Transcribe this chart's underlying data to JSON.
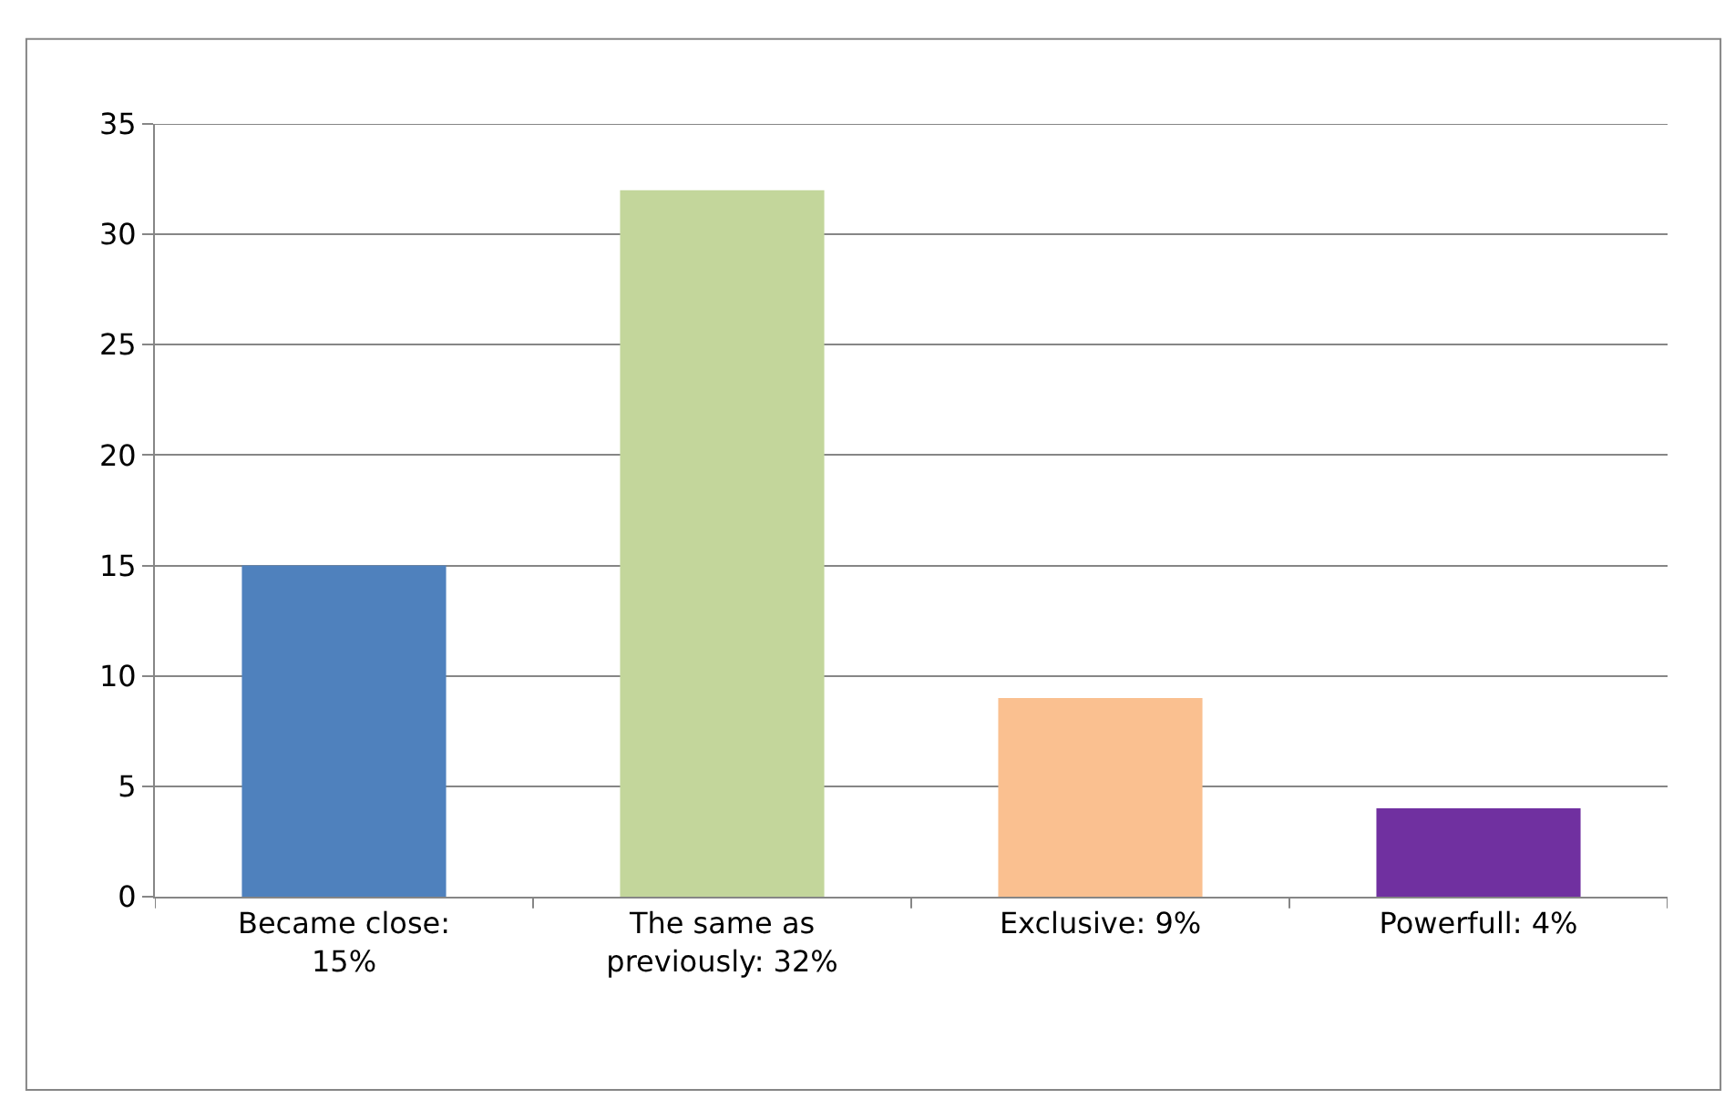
{
  "chart_data": {
    "type": "bar",
    "categories": [
      "Became close: 15%",
      "The same as previously: 32%",
      "Exclusive: 9%",
      "Powerfull: 4%"
    ],
    "values": [
      15,
      32,
      9,
      4
    ],
    "colors": [
      "#4f81bd",
      "#c3d69b",
      "#fac090",
      "#7030a0"
    ],
    "ylim": [
      0,
      35
    ],
    "yticks": [
      0,
      5,
      10,
      15,
      20,
      25,
      30,
      35
    ],
    "grid": "y"
  }
}
